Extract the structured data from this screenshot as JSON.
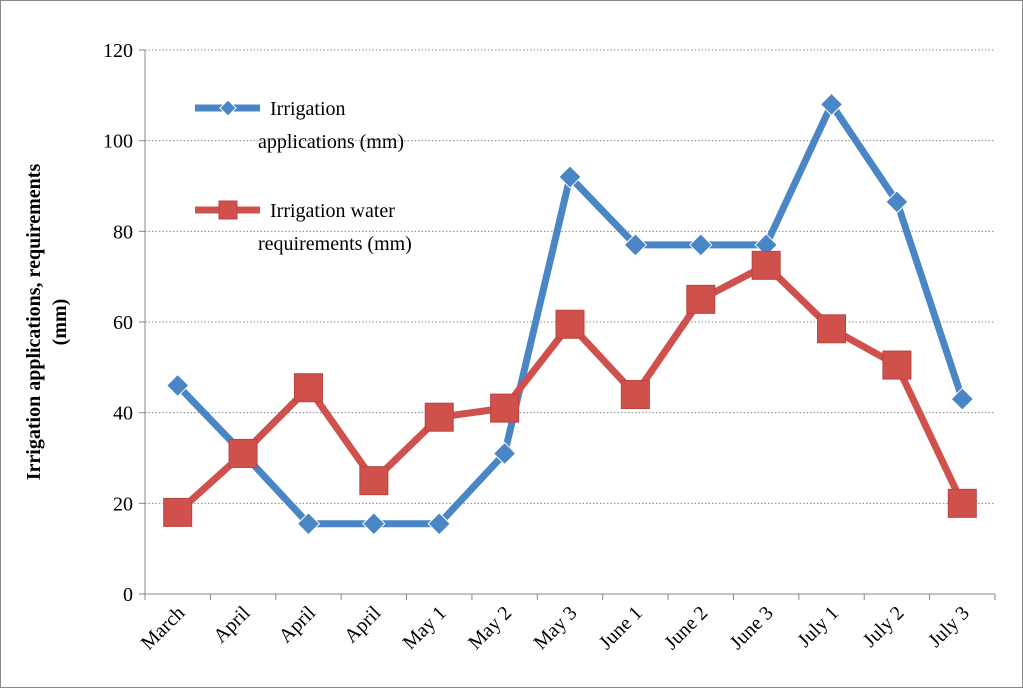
{
  "chart_data": {
    "type": "line",
    "categories": [
      "March",
      "April",
      "April",
      "April",
      "May 1",
      "May 2",
      "May 3",
      "June 1",
      "June 2",
      "June 3",
      "July 1",
      "July 2",
      "July 3"
    ],
    "series": [
      {
        "name": "Irrigation applications (mm)",
        "color": "#4a86c5",
        "marker": "diamond",
        "values": [
          46,
          31,
          15.5,
          15.5,
          15.5,
          31,
          92,
          77,
          77,
          77,
          108,
          86.5,
          43
        ]
      },
      {
        "name": "Irrigation water requirements (mm)",
        "color": "#d0504c",
        "marker": "square",
        "values": [
          18,
          31,
          45.5,
          25,
          39,
          41,
          59.5,
          44,
          65,
          72.5,
          58.5,
          50.5,
          20
        ]
      }
    ],
    "ylabel": "Irrigation applications, requirements (mm)",
    "ylim": [
      0,
      120
    ],
    "yticks": [
      0,
      20,
      40,
      60,
      80,
      100,
      120
    ],
    "grid": true,
    "legend": "upper left"
  }
}
